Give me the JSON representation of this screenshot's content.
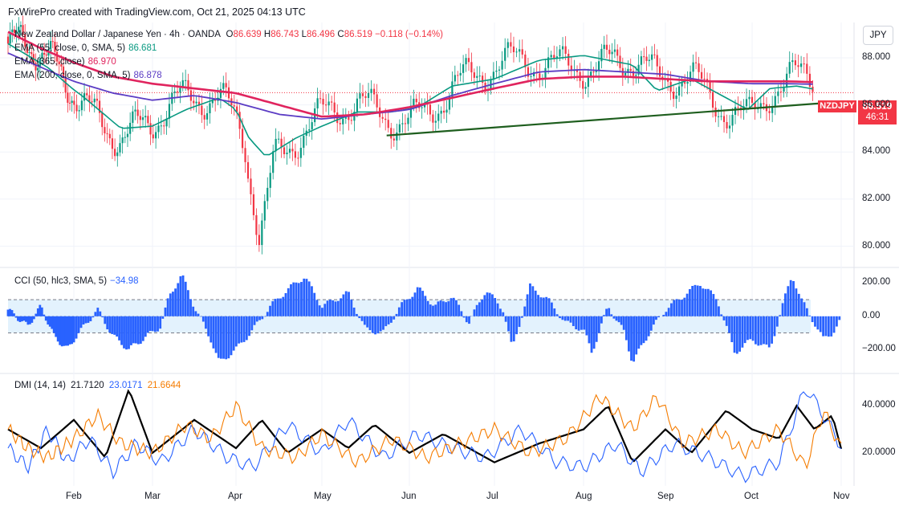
{
  "header": "FxWirePro created with TradingView.com, Oct 21, 2025 04:13 UTC",
  "currency": "JPY",
  "main_legend": {
    "symbol_desc": "New Zealand Dollar / Japanese Yen · 4h · OANDA",
    "o_label": "O",
    "o": "86.639",
    "h_label": "H",
    "h": "86.743",
    "l_label": "L",
    "l": "86.496",
    "c_label": "C",
    "c": "86.519",
    "change": "−0.118 (−0.14%)"
  },
  "ema_legends": [
    {
      "label": "EMA (55, close, 0, SMA, 5)",
      "value": "86.681",
      "color": "#089981"
    },
    {
      "label": "EMA (365, close)",
      "value": "86.970",
      "color": "#e0245e"
    },
    {
      "label": "EMA (200, close, 0, SMA, 5)",
      "value": "86.878",
      "color": "#5b3cc4"
    }
  ],
  "cci_legend": {
    "label": "CCI (50, hlc3, SMA, 5)",
    "value": "−34.98",
    "color": "#2962ff"
  },
  "dmi_legend": {
    "label": "DMI (14, 14)",
    "adx": "21.7120",
    "plus_di": "23.0171",
    "minus_di": "21.6644"
  },
  "price_tag": {
    "symbol": "NZDJPY",
    "price": "86.519",
    "countdown": "46:31"
  },
  "colors": {
    "up": "#089981",
    "down": "#f23645",
    "ema55": "#089981",
    "ema365": "#e0245e",
    "ema200": "#5b3cc4",
    "trendline": "#1e5e1e",
    "cci": "#2962ff",
    "cci_band": "#e3f2fd",
    "adx": "#000000",
    "plus_di": "#2962ff",
    "minus_di": "#f57c00"
  },
  "chart_data": [
    {
      "type": "candlestick",
      "title": "New Zealand Dollar / Japanese Yen · 4h · OANDA",
      "x_labels": [
        "Feb",
        "Mar",
        "Apr",
        "May",
        "Jun",
        "Jul",
        "Aug",
        "Sep",
        "Oct",
        "Nov"
      ],
      "y_ticks": [
        "80.000",
        "82.000",
        "84.000",
        "86.000",
        "88.000"
      ],
      "ylim": [
        79.2,
        89.5
      ],
      "series": [
        {
          "name": "EMA (55, close, 0, SMA, 5)",
          "points": [
            [
              0,
              88.6
            ],
            [
              0.6,
              87.6
            ],
            [
              1.1,
              86.4
            ],
            [
              1.6,
              85.0
            ],
            [
              2.0,
              85.1
            ],
            [
              2.4,
              85.8
            ],
            [
              2.8,
              86.3
            ],
            [
              3.0,
              85.8
            ],
            [
              3.15,
              84.6
            ],
            [
              3.35,
              83.8
            ],
            [
              3.7,
              84.6
            ],
            [
              4.0,
              85.1
            ],
            [
              4.4,
              85.7
            ],
            [
              4.8,
              85.7
            ],
            [
              5.1,
              85.9
            ],
            [
              5.5,
              86.8
            ],
            [
              6.0,
              87.1
            ],
            [
              6.5,
              87.9
            ],
            [
              7.0,
              88.1
            ],
            [
              7.3,
              87.9
            ],
            [
              7.6,
              87.7
            ],
            [
              7.9,
              86.6
            ],
            [
              8.3,
              87.1
            ],
            [
              8.7,
              86.3
            ],
            [
              8.95,
              85.8
            ],
            [
              9.2,
              86.7
            ],
            [
              9.5,
              86.8
            ],
            [
              9.68,
              86.68
            ]
          ]
        },
        {
          "name": "EMA (200, close, 0, SMA, 5)",
          "points": [
            [
              0,
              88.2
            ],
            [
              0.5,
              87.6
            ],
            [
              1.0,
              87.0
            ],
            [
              1.5,
              86.5
            ],
            [
              2.0,
              86.2
            ],
            [
              2.5,
              86.4
            ],
            [
              3.0,
              86.1
            ],
            [
              3.5,
              85.6
            ],
            [
              4.0,
              85.4
            ],
            [
              4.5,
              85.6
            ],
            [
              5.0,
              85.8
            ],
            [
              5.5,
              86.4
            ],
            [
              6.0,
              86.9
            ],
            [
              6.5,
              87.4
            ],
            [
              7.0,
              87.5
            ],
            [
              7.5,
              87.4
            ],
            [
              8.0,
              87.3
            ],
            [
              8.5,
              87.0
            ],
            [
              9.0,
              86.9
            ],
            [
              9.4,
              86.9
            ],
            [
              9.68,
              86.88
            ]
          ]
        },
        {
          "name": "EMA (365, close)",
          "points": [
            [
              0,
              89.1
            ],
            [
              0.5,
              88.4
            ],
            [
              1.0,
              87.8
            ],
            [
              1.5,
              87.2
            ],
            [
              2.0,
              86.9
            ],
            [
              2.5,
              86.7
            ],
            [
              3.0,
              86.5
            ],
            [
              3.5,
              86.0
            ],
            [
              4.0,
              85.5
            ],
            [
              4.5,
              85.6
            ],
            [
              5.0,
              85.9
            ],
            [
              5.5,
              86.3
            ],
            [
              6.0,
              86.7
            ],
            [
              6.5,
              87.1
            ],
            [
              7.0,
              87.2
            ],
            [
              7.5,
              87.2
            ],
            [
              8.0,
              87.1
            ],
            [
              8.5,
              87.0
            ],
            [
              9.0,
              87.0
            ],
            [
              9.4,
              87.0
            ],
            [
              9.68,
              86.97
            ]
          ]
        },
        {
          "name": "trendline",
          "points": [
            [
              4.74,
              84.7
            ],
            [
              9.88,
              86.1
            ]
          ]
        }
      ]
    },
    {
      "type": "bar",
      "title": "CCI (50, hlc3, SMA, 5)",
      "y_ticks": [
        "200.00",
        "0.00",
        "−200.00"
      ],
      "ylim": [
        -320,
        260
      ],
      "bands": [
        100,
        -100
      ],
      "series": [
        {
          "name": "CCI",
          "points": [
            [
              0,
              40
            ],
            [
              0.3,
              -60
            ],
            [
              0.5,
              60
            ],
            [
              0.7,
              -120
            ],
            [
              0.9,
              -200
            ],
            [
              1.1,
              -80
            ],
            [
              1.3,
              40
            ],
            [
              1.5,
              -120
            ],
            [
              1.7,
              -200
            ],
            [
              1.9,
              -130
            ],
            [
              2.1,
              -60
            ],
            [
              2.2,
              120
            ],
            [
              2.35,
              250
            ],
            [
              2.5,
              60
            ],
            [
              2.7,
              -140
            ],
            [
              2.8,
              -280
            ],
            [
              3.0,
              -200
            ],
            [
              3.2,
              -80
            ],
            [
              3.4,
              60
            ],
            [
              3.6,
              160
            ],
            [
              3.8,
              240
            ],
            [
              4.0,
              60
            ],
            [
              4.3,
              140
            ],
            [
              4.5,
              -80
            ],
            [
              4.7,
              -100
            ],
            [
              4.9,
              60
            ],
            [
              5.1,
              170
            ],
            [
              5.3,
              60
            ],
            [
              5.5,
              120
            ],
            [
              5.7,
              -40
            ],
            [
              5.9,
              160
            ],
            [
              6.1,
              40
            ],
            [
              6.2,
              -200
            ],
            [
              6.4,
              180
            ],
            [
              6.6,
              100
            ],
            [
              6.8,
              -40
            ],
            [
              7.0,
              -80
            ],
            [
              7.1,
              -220
            ],
            [
              7.3,
              60
            ],
            [
              7.5,
              -100
            ],
            [
              7.6,
              -280
            ],
            [
              7.8,
              -100
            ],
            [
              8.0,
              40
            ],
            [
              8.2,
              120
            ],
            [
              8.4,
              200
            ],
            [
              8.6,
              100
            ],
            [
              8.8,
              -220
            ],
            [
              9.0,
              -140
            ],
            [
              9.2,
              -200
            ],
            [
              9.35,
              80
            ],
            [
              9.45,
              250
            ],
            [
              9.55,
              100
            ],
            [
              9.7,
              -40
            ],
            [
              9.8,
              -140
            ],
            [
              9.9,
              -100
            ],
            [
              9.98,
              -35
            ]
          ]
        }
      ]
    },
    {
      "type": "line",
      "title": "DMI (14, 14)",
      "y_ticks": [
        "40.0000",
        "20.0000"
      ],
      "ylim": [
        6,
        52
      ],
      "series": [
        {
          "name": "ADX",
          "points": [
            [
              0,
              30
            ],
            [
              0.5,
              22
            ],
            [
              1.0,
              34
            ],
            [
              1.4,
              18
            ],
            [
              1.7,
              47
            ],
            [
              2.0,
              20
            ],
            [
              2.5,
              34
            ],
            [
              3.0,
              22
            ],
            [
              3.3,
              34
            ],
            [
              3.6,
              20
            ],
            [
              4.0,
              30
            ],
            [
              4.3,
              22
            ],
            [
              4.6,
              32
            ],
            [
              5.0,
              20
            ],
            [
              5.4,
              28
            ],
            [
              6.0,
              16
            ],
            [
              6.5,
              24
            ],
            [
              7.0,
              30
            ],
            [
              7.3,
              40
            ],
            [
              7.6,
              16
            ],
            [
              8.0,
              30
            ],
            [
              8.3,
              20
            ],
            [
              8.7,
              38
            ],
            [
              9.0,
              30
            ],
            [
              9.3,
              26
            ],
            [
              9.5,
              40
            ],
            [
              9.7,
              30
            ],
            [
              9.9,
              36
            ],
            [
              10.0,
              21.7
            ]
          ]
        },
        {
          "name": "+DI",
          "points": [
            [
              0,
              22
            ],
            [
              0.3,
              14
            ],
            [
              0.6,
              30
            ],
            [
              0.9,
              16
            ],
            [
              1.2,
              26
            ],
            [
              1.5,
              12
            ],
            [
              1.8,
              24
            ],
            [
              2.1,
              16
            ],
            [
              2.5,
              30
            ],
            [
              2.9,
              18
            ],
            [
              3.2,
              14
            ],
            [
              3.6,
              32
            ],
            [
              4.0,
              20
            ],
            [
              4.3,
              34
            ],
            [
              4.7,
              18
            ],
            [
              5.1,
              28
            ],
            [
              5.5,
              22
            ],
            [
              5.9,
              18
            ],
            [
              6.3,
              30
            ],
            [
              6.7,
              16
            ],
            [
              7.0,
              14
            ],
            [
              7.4,
              24
            ],
            [
              7.7,
              12
            ],
            [
              8.1,
              24
            ],
            [
              8.5,
              18
            ],
            [
              8.9,
              10
            ],
            [
              9.3,
              16
            ],
            [
              9.6,
              48
            ],
            [
              9.8,
              36
            ],
            [
              10.0,
              23.0
            ]
          ]
        },
        {
          "name": "−DI",
          "points": [
            [
              0,
              30
            ],
            [
              0.3,
              22
            ],
            [
              0.6,
              18
            ],
            [
              1.0,
              26
            ],
            [
              1.3,
              36
            ],
            [
              1.6,
              24
            ],
            [
              2.0,
              20
            ],
            [
              2.4,
              32
            ],
            [
              2.7,
              26
            ],
            [
              3.0,
              40
            ],
            [
              3.3,
              22
            ],
            [
              3.7,
              18
            ],
            [
              4.0,
              28
            ],
            [
              4.4,
              16
            ],
            [
              4.8,
              26
            ],
            [
              5.2,
              18
            ],
            [
              5.6,
              24
            ],
            [
              6.0,
              30
            ],
            [
              6.4,
              20
            ],
            [
              6.8,
              26
            ],
            [
              7.2,
              44
            ],
            [
              7.6,
              30
            ],
            [
              7.9,
              44
            ],
            [
              8.2,
              24
            ],
            [
              8.6,
              30
            ],
            [
              8.9,
              20
            ],
            [
              9.3,
              30
            ],
            [
              9.6,
              14
            ],
            [
              9.8,
              38
            ],
            [
              10.0,
              21.7
            ]
          ]
        }
      ]
    }
  ]
}
